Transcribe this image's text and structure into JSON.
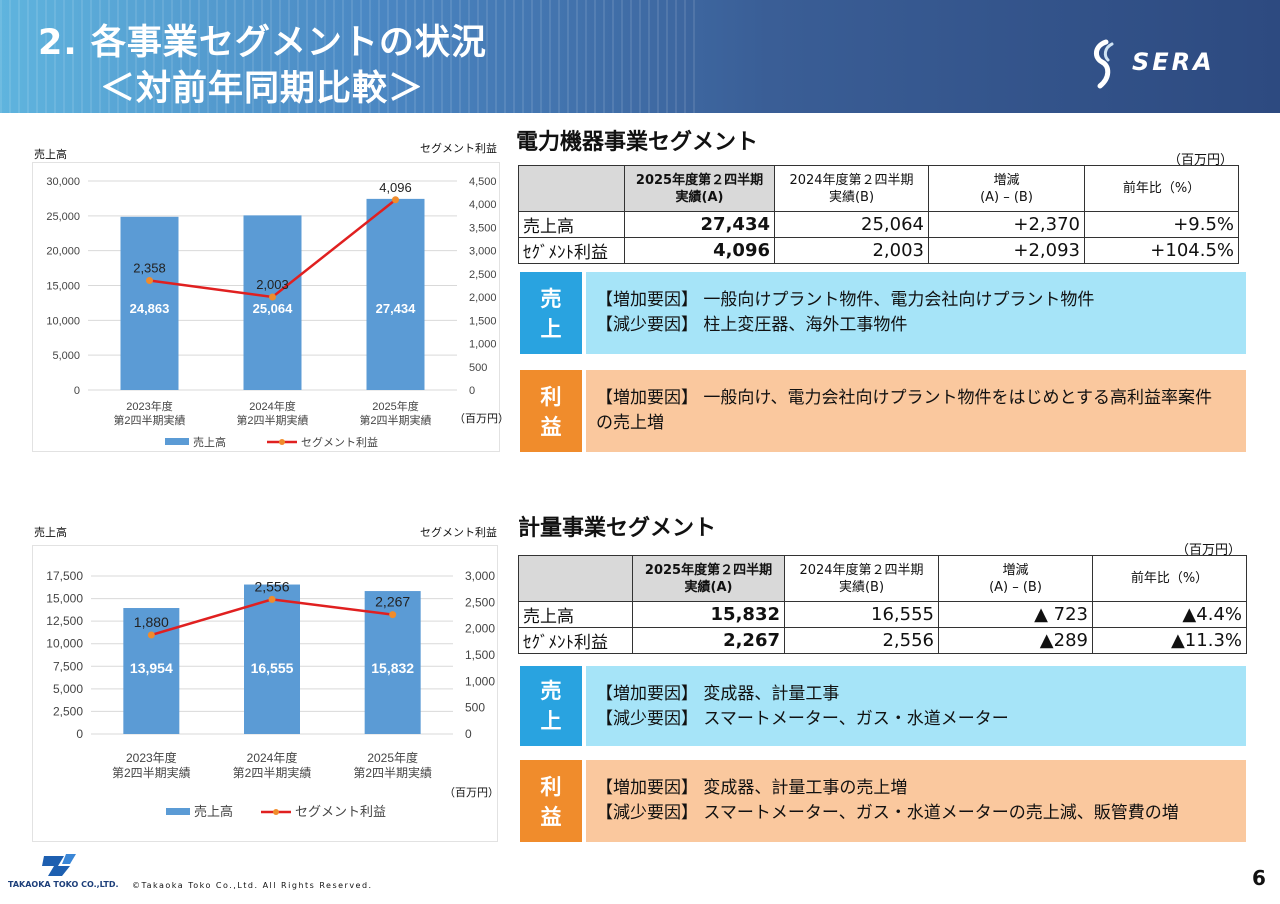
{
  "header": {
    "title_line1": "2. 各事業セグメントの状況",
    "title_line2": "＜対前年同期比較＞",
    "logo_text": "SERA"
  },
  "colors": {
    "bar": "#5b9bd5",
    "line": "#e02020",
    "marker": "#f08c2c",
    "sales_tag": "#29a3e0",
    "profit_tag": "#f08c2c"
  },
  "power": {
    "title": "電力機器事業セグメント",
    "unit": "（百万円）",
    "table": {
      "headers": [
        "2025年度第２四半期\n実績(A)",
        "2024年度第２四半期\n実績(B)",
        "増減\n(A) – (B)",
        "前年比（%）"
      ],
      "rows": [
        {
          "label": "売上高",
          "cells": [
            "27,434",
            "25,064",
            "+2,370",
            "+9.5%"
          ]
        },
        {
          "label": "ｾｸﾞﾒﾝﾄ利益",
          "cells": [
            "4,096",
            "2,003",
            "+2,093",
            "+104.5%"
          ]
        }
      ]
    },
    "sales_box": {
      "tag1": "売",
      "tag2": "上",
      "line1": "【増加要因】 一般向けプラント物件、電力会社向けプラント物件",
      "line2": "【減少要因】 柱上変圧器、海外工事物件"
    },
    "profit_box": {
      "tag1": "利",
      "tag2": "益",
      "line1": "【増加要因】 一般向け、電力会社向けプラント物件をはじめとする高利益率案件",
      "line2": "の売上増"
    }
  },
  "meter": {
    "title": "計量事業セグメント",
    "unit": "（百万円）",
    "table": {
      "headers": [
        "2025年度第２四半期\n実績(A)",
        "2024年度第２四半期\n実績(B)",
        "増減\n(A) – (B)",
        "前年比（%）"
      ],
      "rows": [
        {
          "label": "売上高",
          "cells": [
            "15,832",
            "16,555",
            "▲ 723",
            "▲4.4%"
          ]
        },
        {
          "label": "ｾｸﾞﾒﾝﾄ利益",
          "cells": [
            "2,267",
            "2,556",
            "▲289",
            "▲11.3%"
          ]
        }
      ]
    },
    "sales_box": {
      "tag1": "売",
      "tag2": "上",
      "line1": "【増加要因】 変成器、計量工事",
      "line2": "【減少要因】 スマートメーター、ガス・水道メーター"
    },
    "profit_box": {
      "tag1": "利",
      "tag2": "益",
      "line1": "【増加要因】 変成器、計量工事の売上増",
      "line2": "【減少要因】 スマートメーター、ガス・水道メーターの売上減、販管費の増"
    }
  },
  "chart_data": [
    {
      "type": "bar",
      "left_caption": "売上高",
      "right_caption": "セグメント利益",
      "unit_note": "（百万円）",
      "categories": [
        [
          "2023年度",
          "第2四半期実績"
        ],
        [
          "2024年度",
          "第2四半期実績"
        ],
        [
          "2025年度",
          "第2四半期実績"
        ]
      ],
      "series": [
        {
          "name": "売上高",
          "kind": "bar",
          "axis": "left",
          "values": [
            24863,
            25064,
            27434
          ],
          "labels": [
            "24,863",
            "25,064",
            "27,434"
          ]
        },
        {
          "name": "セグメント利益",
          "kind": "line",
          "axis": "right",
          "values": [
            2358,
            2003,
            4096
          ],
          "labels": [
            "2,358",
            "2,003",
            "4,096"
          ]
        }
      ],
      "ylim_left": [
        0,
        30000
      ],
      "yticks_left": [
        "0",
        "5,000",
        "10,000",
        "15,000",
        "20,000",
        "25,000",
        "30,000"
      ],
      "ylim_right": [
        0,
        4500
      ],
      "yticks_right": [
        "0",
        "500",
        "1,000",
        "1,500",
        "2,000",
        "2,500",
        "3,000",
        "3,500",
        "4,000",
        "4,500"
      ],
      "legend_position": "bottom"
    },
    {
      "type": "bar",
      "left_caption": "売上高",
      "right_caption": "セグメント利益",
      "unit_note": "（百万円）",
      "categories": [
        [
          "2023年度",
          "第2四半期実績"
        ],
        [
          "2024年度",
          "第2四半期実績"
        ],
        [
          "2025年度",
          "第2四半期実績"
        ]
      ],
      "series": [
        {
          "name": "売上高",
          "kind": "bar",
          "axis": "left",
          "values": [
            13954,
            16555,
            15832
          ],
          "labels": [
            "13,954",
            "16,555",
            "15,832"
          ]
        },
        {
          "name": "セグメント利益",
          "kind": "line",
          "axis": "right",
          "values": [
            1880,
            2556,
            2267
          ],
          "labels": [
            "1,880",
            "2,556",
            "2,267"
          ]
        }
      ],
      "ylim_left": [
        0,
        17500
      ],
      "yticks_left": [
        "0",
        "2,500",
        "5,000",
        "7,500",
        "10,000",
        "12,500",
        "15,000",
        "17,500"
      ],
      "ylim_right": [
        0,
        3000
      ],
      "yticks_right": [
        "0",
        "500",
        "1,000",
        "1,500",
        "2,000",
        "2,500",
        "3,000"
      ],
      "legend_position": "bottom"
    }
  ],
  "footer": {
    "company": "TAKAOKA TOKO CO.,LTD.",
    "copyright": "©Takaoka Toko Co.,Ltd. All Rights Reserved.",
    "page": "6"
  }
}
